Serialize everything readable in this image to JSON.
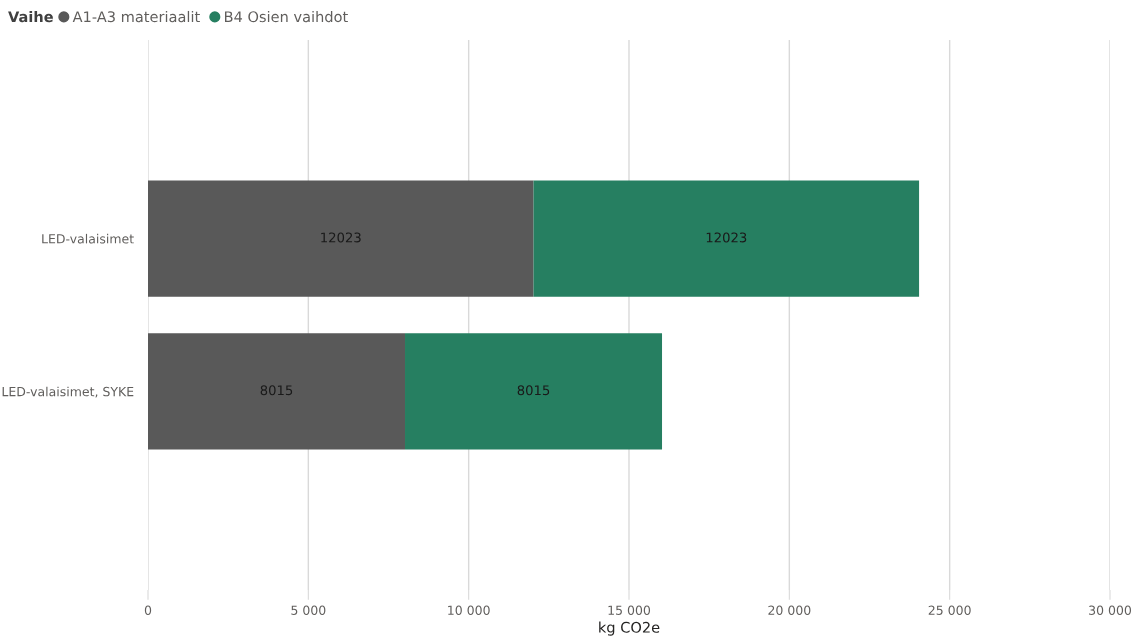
{
  "chart_data": {
    "type": "bar",
    "orientation": "horizontal",
    "stacked": true,
    "legend_title": "Vaihe",
    "xlabel": "kg CO2e",
    "categories": [
      "LED-valaisimet",
      "LED-valaisimet, SYKE"
    ],
    "series": [
      {
        "name": "A1-A3 materiaalit",
        "color": "#595959",
        "values": [
          12023,
          8015
        ]
      },
      {
        "name": "B4 Osien vaihdot",
        "color": "#267f61",
        "values": [
          12023,
          8015
        ]
      }
    ],
    "xlim": [
      0,
      30000
    ],
    "xticks": [
      0,
      {
        "value": 5000,
        "label": "5 000"
      },
      {
        "value": 10000,
        "label": "10 000"
      },
      {
        "value": 15000,
        "label": "15 000"
      },
      {
        "value": 20000,
        "label": "20 000"
      },
      {
        "value": 25000,
        "label": "25 000"
      },
      {
        "value": 30000,
        "label": "30 000"
      }
    ],
    "grid": "x",
    "legend": "top left",
    "data_labels": true
  }
}
